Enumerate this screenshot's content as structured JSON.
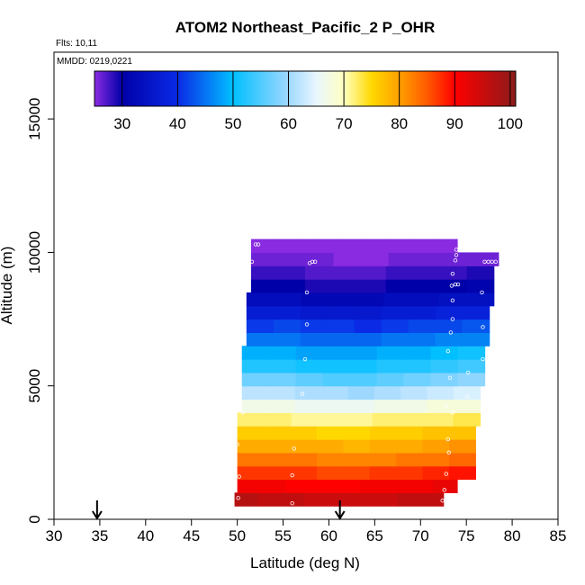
{
  "chart_data": {
    "type": "heatmap",
    "title": "ATOM2 Northeast_Pacific_2 P_OHR",
    "info_lines": [
      "Flts: 10,11",
      "MMDD: 0219,0221"
    ],
    "xlabel": "Latitude (deg N)",
    "ylabel": "Altitude (m)",
    "xlim": [
      30,
      85
    ],
    "ylim": [
      0,
      17500
    ],
    "x_ticks": [
      30,
      35,
      40,
      45,
      50,
      55,
      60,
      65,
      70,
      75,
      80,
      85
    ],
    "y_ticks": [
      0,
      5000,
      10000,
      15000
    ],
    "colorbar": {
      "range": [
        25,
        101
      ],
      "ticks": [
        30,
        40,
        50,
        60,
        70,
        80,
        90,
        100
      ],
      "stops": [
        {
          "v": 25,
          "c": "#8a2be2"
        },
        {
          "v": 30,
          "c": "#0000a8"
        },
        {
          "v": 40,
          "c": "#0a2ae6"
        },
        {
          "v": 50,
          "c": "#00bfff"
        },
        {
          "v": 60,
          "c": "#9fd8ff"
        },
        {
          "v": 65,
          "c": "#e8f6ff"
        },
        {
          "v": 70,
          "c": "#ffffc0"
        },
        {
          "v": 75,
          "c": "#ffd800"
        },
        {
          "v": 80,
          "c": "#ffa000"
        },
        {
          "v": 85,
          "c": "#ff5a00"
        },
        {
          "v": 90,
          "c": "#ff0000"
        },
        {
          "v": 101,
          "c": "#8b1a1a"
        }
      ]
    },
    "altitude_bands": [
      {
        "alt_low": 500,
        "alt_high": 1000,
        "lat_start": 49.7,
        "lat_end": 72.5,
        "values": [
          97,
          96,
          96,
          95,
          95,
          95,
          95,
          96,
          96
        ]
      },
      {
        "alt_low": 1000,
        "alt_high": 1500,
        "lat_start": 50.0,
        "lat_end": 74.0,
        "values": [
          91,
          91,
          90,
          90,
          90,
          91,
          91,
          91,
          92
        ]
      },
      {
        "alt_low": 1500,
        "alt_high": 2000,
        "lat_start": 50.0,
        "lat_end": 76.0,
        "values": [
          87,
          87,
          87,
          86,
          86,
          87,
          87,
          88,
          89
        ]
      },
      {
        "alt_low": 2000,
        "alt_high": 2500,
        "lat_start": 50.0,
        "lat_end": 76.0,
        "values": [
          83,
          83,
          83,
          82,
          82,
          82,
          83,
          83,
          84
        ]
      },
      {
        "alt_low": 2500,
        "alt_high": 3000,
        "lat_start": 50.0,
        "lat_end": 76.0,
        "values": [
          79,
          79,
          79,
          79,
          78,
          79,
          79,
          80,
          81
        ]
      },
      {
        "alt_low": 3000,
        "alt_high": 3500,
        "lat_start": 50.0,
        "lat_end": 76.0,
        "values": [
          76,
          76,
          76,
          75,
          75,
          76,
          76,
          77,
          77
        ]
      },
      {
        "alt_low": 3500,
        "alt_high": 4000,
        "lat_start": 50.0,
        "lat_end": 76.5,
        "values": [
          72,
          72,
          71,
          71,
          71,
          72,
          72,
          72,
          73
        ]
      },
      {
        "alt_low": 4000,
        "alt_high": 4500,
        "lat_start": 50.5,
        "lat_end": 76.5,
        "values": [
          67,
          67,
          66,
          66,
          66,
          67,
          67,
          68,
          68
        ]
      },
      {
        "alt_low": 4500,
        "alt_high": 5000,
        "lat_start": 50.5,
        "lat_end": 76.5,
        "values": [
          62,
          62,
          61,
          61,
          60,
          61,
          62,
          63,
          64
        ]
      },
      {
        "alt_low": 5000,
        "alt_high": 5500,
        "lat_start": 50.5,
        "lat_end": 77.0,
        "values": [
          57,
          57,
          56,
          55,
          55,
          56,
          57,
          58,
          59
        ]
      },
      {
        "alt_low": 5500,
        "alt_high": 6000,
        "lat_start": 50.5,
        "lat_end": 77.0,
        "values": [
          52,
          52,
          51,
          51,
          51,
          52,
          52,
          53,
          54
        ]
      },
      {
        "alt_low": 6000,
        "alt_high": 6500,
        "lat_start": 50.5,
        "lat_end": 77.0,
        "values": [
          49,
          49,
          48,
          48,
          48,
          49,
          49,
          50,
          51
        ]
      },
      {
        "alt_low": 6500,
        "alt_high": 7000,
        "lat_start": 51.0,
        "lat_end": 77.5,
        "values": [
          45,
          45,
          44,
          44,
          44,
          45,
          45,
          46,
          46
        ]
      },
      {
        "alt_low": 7000,
        "alt_high": 7500,
        "lat_start": 51.0,
        "lat_end": 77.5,
        "values": [
          41,
          42,
          41,
          41,
          40,
          41,
          42,
          42,
          43
        ]
      },
      {
        "alt_low": 7500,
        "alt_high": 8000,
        "lat_start": 51.0,
        "lat_end": 77.5,
        "values": [
          37,
          37,
          36,
          36,
          36,
          37,
          37,
          38,
          38
        ]
      },
      {
        "alt_low": 8000,
        "alt_high": 8500,
        "lat_start": 51.0,
        "lat_end": 78.0,
        "values": [
          33,
          33,
          32,
          32,
          32,
          33,
          33,
          34,
          34
        ]
      },
      {
        "alt_low": 8500,
        "alt_high": 9000,
        "lat_start": 51.5,
        "lat_end": 78.0,
        "values": [
          30,
          30,
          29,
          29,
          29,
          30,
          30,
          30,
          31
        ]
      },
      {
        "alt_low": 9000,
        "alt_high": 9500,
        "lat_start": 51.5,
        "lat_end": 78.0,
        "values": [
          28,
          28,
          27,
          27,
          27,
          28,
          28,
          28,
          29
        ]
      },
      {
        "alt_low": 9500,
        "alt_high": 10000,
        "lat_start": 51.5,
        "lat_end": 78.5,
        "values": [
          26,
          26,
          26,
          25,
          25,
          26,
          26,
          26,
          26
        ]
      },
      {
        "alt_low": 10000,
        "alt_high": 10500,
        "lat_start": 51.5,
        "lat_end": 74.0,
        "values": [
          25,
          25,
          25,
          25,
          25,
          25,
          25,
          25,
          25
        ]
      }
    ],
    "sample_points": [
      {
        "lat": 50.1,
        "alt": 800
      },
      {
        "lat": 56.0,
        "alt": 600
      },
      {
        "lat": 72.4,
        "alt": 700
      },
      {
        "lat": 72.6,
        "alt": 1100
      },
      {
        "lat": 50.2,
        "alt": 1600
      },
      {
        "lat": 56.0,
        "alt": 1650
      },
      {
        "lat": 72.8,
        "alt": 1700
      },
      {
        "lat": 50.0,
        "alt": 2800
      },
      {
        "lat": 56.2,
        "alt": 2650
      },
      {
        "lat": 73.1,
        "alt": 2500
      },
      {
        "lat": 73.0,
        "alt": 3000
      },
      {
        "lat": 73.5,
        "alt": 4000
      },
      {
        "lat": 72.8,
        "alt": 4250
      },
      {
        "lat": 50.6,
        "alt": 4000
      },
      {
        "lat": 57.1,
        "alt": 4700
      },
      {
        "lat": 75.1,
        "alt": 4600
      },
      {
        "lat": 73.2,
        "alt": 5300
      },
      {
        "lat": 75.2,
        "alt": 5500
      },
      {
        "lat": 57.4,
        "alt": 6000
      },
      {
        "lat": 76.8,
        "alt": 6000
      },
      {
        "lat": 73.0,
        "alt": 6300
      },
      {
        "lat": 57.6,
        "alt": 7300
      },
      {
        "lat": 73.3,
        "alt": 7000
      },
      {
        "lat": 73.5,
        "alt": 7500
      },
      {
        "lat": 76.8,
        "alt": 7200
      },
      {
        "lat": 57.6,
        "alt": 8500
      },
      {
        "lat": 73.5,
        "alt": 8200
      },
      {
        "lat": 73.4,
        "alt": 8750
      },
      {
        "lat": 73.8,
        "alt": 8800
      },
      {
        "lat": 74.1,
        "alt": 8800
      },
      {
        "lat": 76.7,
        "alt": 8500
      },
      {
        "lat": 73.5,
        "alt": 9200
      },
      {
        "lat": 51.6,
        "alt": 9650
      },
      {
        "lat": 57.9,
        "alt": 9600
      },
      {
        "lat": 58.2,
        "alt": 9650
      },
      {
        "lat": 58.5,
        "alt": 9650
      },
      {
        "lat": 73.8,
        "alt": 9700
      },
      {
        "lat": 77.0,
        "alt": 9650
      },
      {
        "lat": 77.4,
        "alt": 9650
      },
      {
        "lat": 77.8,
        "alt": 9650
      },
      {
        "lat": 78.2,
        "alt": 9650
      },
      {
        "lat": 73.9,
        "alt": 9900
      },
      {
        "lat": 73.9,
        "alt": 10100
      },
      {
        "lat": 52.0,
        "alt": 10300
      },
      {
        "lat": 52.3,
        "alt": 10300
      }
    ],
    "markers": [
      {
        "type": "arrow",
        "lat": 34.7
      },
      {
        "type": "arrow",
        "lat": 61.2
      }
    ]
  }
}
